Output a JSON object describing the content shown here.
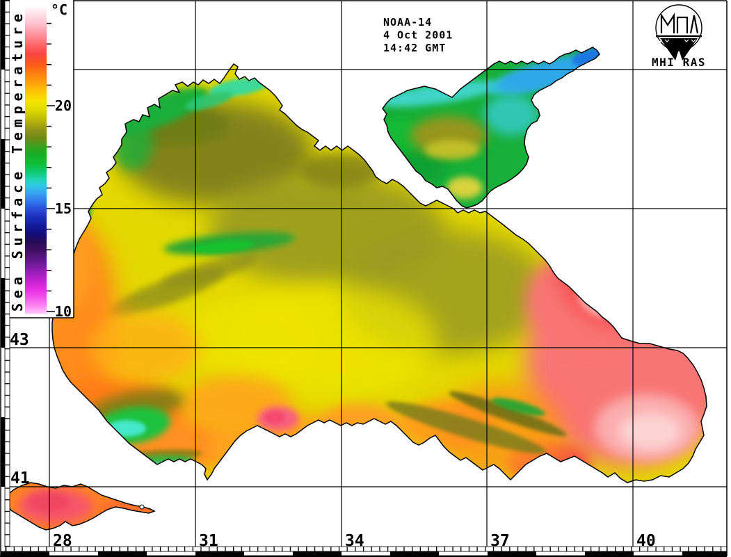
{
  "header": {
    "satellite": "NOAA-14",
    "date": "4 Oct 2001",
    "time": "14:42 GMT"
  },
  "logo": {
    "organization": "MHI RAS"
  },
  "colorbar": {
    "title": "Sea Surface Temperature",
    "unit": "°C",
    "tick_labels": [
      "20",
      "15",
      "10"
    ],
    "scale_top_c": 25,
    "scale_bottom_c": 10,
    "gradient_stops": [
      [
        "0%",
        "#FFFFFF"
      ],
      [
        "2.5%",
        "#FFE4EC"
      ],
      [
        "5.8%",
        "#FFC2D0"
      ],
      [
        "9%",
        "#FF96A4"
      ],
      [
        "12.4%",
        "#FB6A6E"
      ],
      [
        "15.6%",
        "#F94744"
      ],
      [
        "19.1%",
        "#FA5A18"
      ],
      [
        "22.4%",
        "#FD8410"
      ],
      [
        "25.7%",
        "#FEAA0A"
      ],
      [
        "28.3%",
        "#FFC906"
      ],
      [
        "31%",
        "#F5E400"
      ],
      [
        "33.6%",
        "#DFDA00"
      ],
      [
        "37%",
        "#B9B908"
      ],
      [
        "40.3%",
        "#929218"
      ],
      [
        "43%",
        "#6F8A16"
      ],
      [
        "45.7%",
        "#3AA01E"
      ],
      [
        "48.3%",
        "#16AE28"
      ],
      [
        "51%",
        "#0FBE34"
      ],
      [
        "53.7%",
        "#0DC96A"
      ],
      [
        "56.3%",
        "#1ED4B4"
      ],
      [
        "58.3%",
        "#2FC9E4"
      ],
      [
        "61%",
        "#389FF2"
      ],
      [
        "63.7%",
        "#2F72E8"
      ],
      [
        "65.8%",
        "#2850D8"
      ],
      [
        "68.4%",
        "#1F30BC"
      ],
      [
        "71.1%",
        "#141C9C"
      ],
      [
        "73.8%",
        "#120C78"
      ],
      [
        "76.4%",
        "#250A58"
      ],
      [
        "79%",
        "#3D0E62"
      ],
      [
        "81.7%",
        "#571682"
      ],
      [
        "84.4%",
        "#7B1CA0"
      ],
      [
        "87%",
        "#A320BE"
      ],
      [
        "89.7%",
        "#CC24D2"
      ],
      [
        "92.3%",
        "#E832E2"
      ],
      [
        "95%",
        "#F55CEC"
      ],
      [
        "97.6%",
        "#FB8EF2"
      ],
      [
        "99.5%",
        "#FDC2F8"
      ],
      [
        "100%",
        "#FEE6FB"
      ]
    ]
  },
  "grid": {
    "latitude_labels": [
      "43",
      "41"
    ],
    "longitude_labels": [
      "28",
      "31",
      "34",
      "37",
      "40"
    ]
  },
  "map": {
    "key_colors": {
      "warm_eastern_basin": "#F87474",
      "warm_core_light": "#FDD3D3",
      "central_yellow": "#E3D800",
      "olive_shelf": "#83831C",
      "coastal_green": "#1FAE3A",
      "cold_upwelling_cyan": "#45E8C8",
      "azov_green": "#16AF38",
      "azov_blue_arm": "#2FA8E8",
      "orange_coastal": "#FF8C1A",
      "marmara_magenta": "#F6566A"
    }
  }
}
